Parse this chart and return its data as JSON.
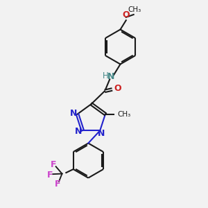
{
  "background_color": "#f2f2f2",
  "bond_color": "#1a1a1a",
  "nitrogen_color": "#2222cc",
  "oxygen_color": "#cc2222",
  "fluorine_color": "#cc44cc",
  "nh_color": "#448888",
  "line_width": 1.5,
  "dbo": 0.06,
  "figsize": [
    3.0,
    3.0
  ],
  "dpi": 100,
  "xlim": [
    0,
    10
  ],
  "ylim": [
    0,
    10
  ]
}
